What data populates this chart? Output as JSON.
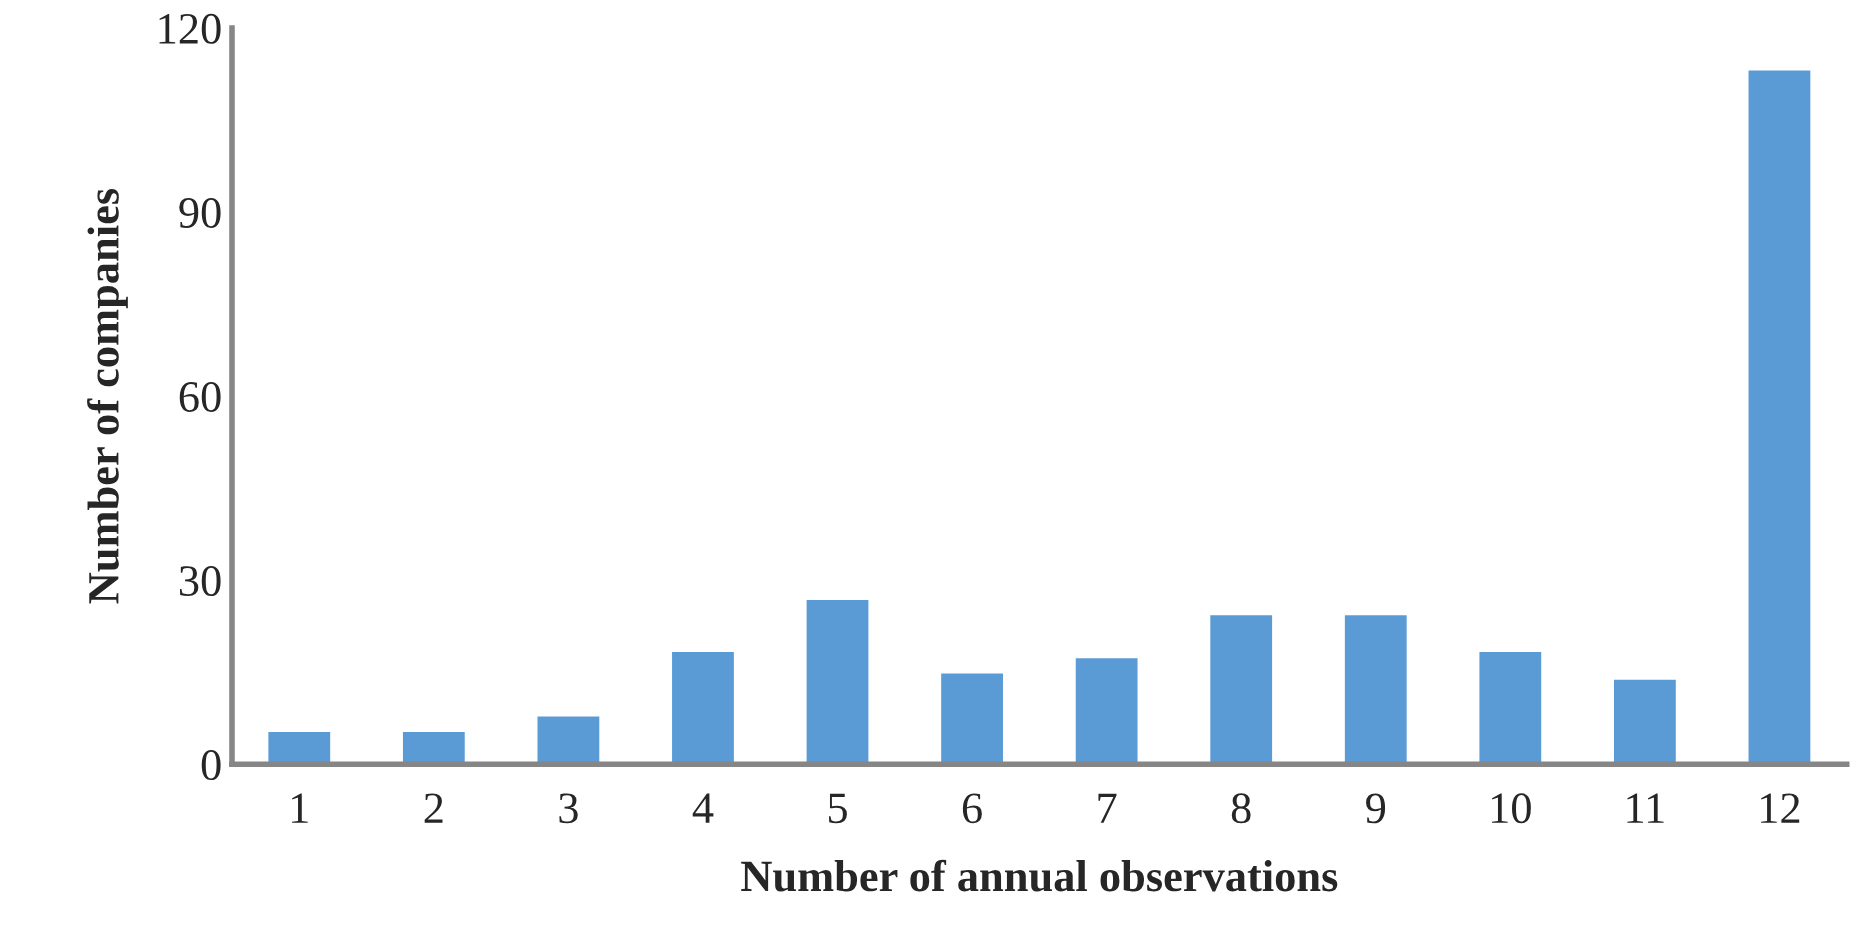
{
  "chart_data": {
    "type": "bar",
    "xlabel": "Number of annual observations",
    "ylabel": "Number of companies",
    "categories": [
      "1",
      "2",
      "3",
      "4",
      "5",
      "6",
      "7",
      "8",
      "9",
      "10",
      "11",
      "12"
    ],
    "values": [
      5.5,
      5.5,
      8,
      18.5,
      27,
      15,
      17.5,
      24.5,
      24.5,
      18.5,
      14,
      113.3
    ],
    "color": "#5b9bd5",
    "ylim": [
      0,
      120
    ],
    "yticks": [
      0,
      30,
      60,
      90,
      120
    ],
    "grid": false
  }
}
